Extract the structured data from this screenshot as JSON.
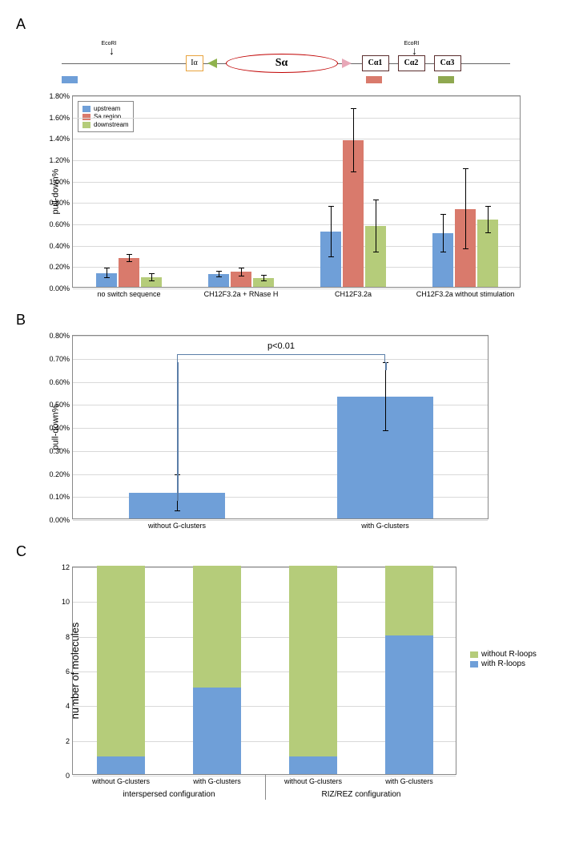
{
  "panels": {
    "a": "A",
    "b": "B",
    "c": "C"
  },
  "colors": {
    "upstream": "#6f9fd8",
    "sa": "#d97a6c",
    "downstream": "#b5cc7a",
    "blue_bar": "#6f9fd8",
    "green_stack": "#b5cc7a",
    "blue_stack": "#6f9fd8",
    "grid": "#d9d9d9",
    "border": "#888888",
    "ia_box": "#e8a33d",
    "ca_box": "#5a2d2d",
    "ellipse": "#c00000",
    "tri_green": "#8fb24d",
    "tri_pink": "#e8a8b8"
  },
  "diagram": {
    "ecori_label": "EcoRI",
    "ia": "Iα",
    "sa": "Sα",
    "ca1": "Cα1",
    "ca2": "Cα2",
    "ca3": "Cα3"
  },
  "chartA": {
    "y_title": "pull-down%",
    "ymax": 1.8,
    "ytick_step": 0.2,
    "legend": [
      "upstream",
      "Sa region",
      "downstream"
    ],
    "groups": [
      {
        "label": "no switch sequence",
        "bars": [
          {
            "v": 0.13,
            "e": 0.05
          },
          {
            "v": 0.27,
            "e": 0.04
          },
          {
            "v": 0.09,
            "e": 0.04
          }
        ]
      },
      {
        "label": "CH12F3.2a + RNase H",
        "bars": [
          {
            "v": 0.12,
            "e": 0.03
          },
          {
            "v": 0.14,
            "e": 0.04
          },
          {
            "v": 0.08,
            "e": 0.03
          }
        ]
      },
      {
        "label": "CH12F3.2a",
        "bars": [
          {
            "v": 0.52,
            "e": 0.24
          },
          {
            "v": 1.37,
            "e": 0.3
          },
          {
            "v": 0.57,
            "e": 0.25
          }
        ]
      },
      {
        "label": "CH12F3.2a without stimulation",
        "bars": [
          {
            "v": 0.5,
            "e": 0.18
          },
          {
            "v": 0.73,
            "e": 0.38
          },
          {
            "v": 0.63,
            "e": 0.13
          }
        ]
      }
    ]
  },
  "chartB": {
    "y_title": "pull-down%",
    "ymax": 0.8,
    "ytick_step": 0.1,
    "pvalue": "p<0.01",
    "categories": [
      {
        "label": "without G-clusters",
        "v": 0.11,
        "e": 0.08
      },
      {
        "label": "with G-clusters",
        "v": 0.53,
        "e": 0.15
      }
    ]
  },
  "chartC": {
    "y_title": "number of molecules",
    "ymax": 12,
    "ytick_step": 2,
    "legend": [
      "without R-loops",
      "with R-loops"
    ],
    "groups": [
      {
        "label": "interspersed configuration",
        "bars": [
          {
            "xlabel": "without G-clusters",
            "with": 1,
            "without": 11
          },
          {
            "xlabel": "with G-clusters",
            "with": 5,
            "without": 7
          }
        ]
      },
      {
        "label": "RIZ/REZ configuration",
        "bars": [
          {
            "xlabel": "without G-clusters",
            "with": 1,
            "without": 11
          },
          {
            "xlabel": "with G-clusters",
            "with": 8,
            "without": 4
          }
        ]
      }
    ]
  }
}
